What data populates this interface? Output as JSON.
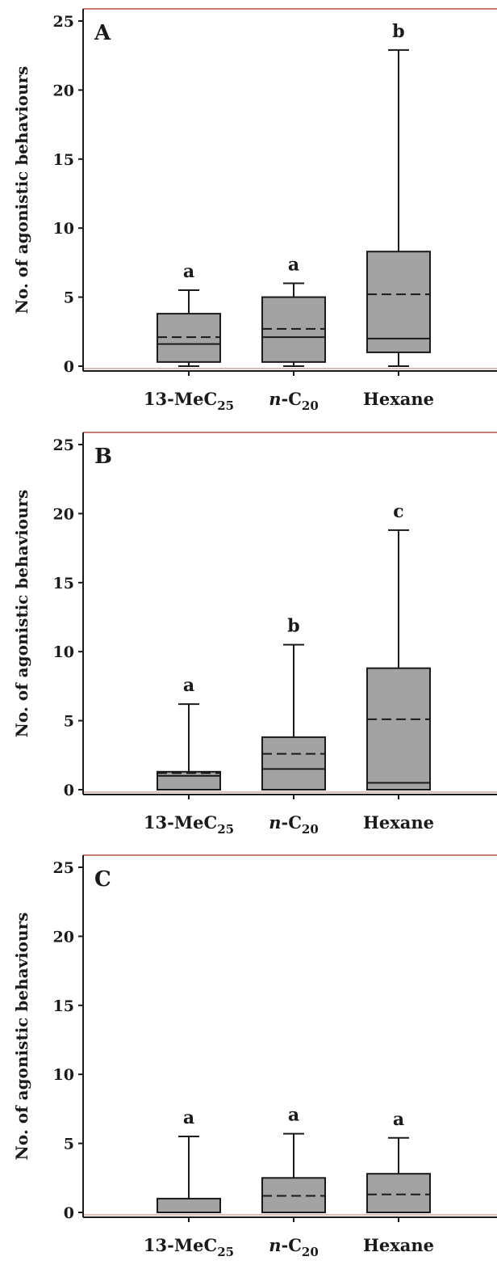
{
  "chart_data": [
    {
      "type": "box",
      "panel_label": "A",
      "ylabel": "No. of agonistic behaviours",
      "ylim": [
        0,
        25
      ],
      "yticks": [
        "0",
        "5",
        "10",
        "15",
        "20",
        "25"
      ],
      "categories": [
        {
          "prefix": "13-MeC",
          "sub": "25"
        },
        {
          "prefix": "n",
          "mid": "-C",
          "sub": "20"
        },
        {
          "prefix": "Hexane"
        }
      ],
      "boxes": [
        {
          "whisker_low": 0,
          "q1": 0.3,
          "median": 1.6,
          "mean": 2.1,
          "q3": 3.8,
          "whisker_high": 5.5,
          "letter": "a"
        },
        {
          "whisker_low": 0,
          "q1": 0.3,
          "median": 2.1,
          "mean": 2.7,
          "q3": 5.0,
          "whisker_high": 6.0,
          "letter": "a"
        },
        {
          "whisker_low": 0,
          "q1": 1.0,
          "median": 2.0,
          "mean": 5.2,
          "q3": 8.3,
          "whisker_high": 22.9,
          "letter": "b"
        }
      ]
    },
    {
      "type": "box",
      "panel_label": "B",
      "ylabel": "No. of agonistic behaviours",
      "ylim": [
        0,
        25
      ],
      "yticks": [
        "0",
        "5",
        "10",
        "15",
        "20",
        "25"
      ],
      "categories": [
        {
          "prefix": "13-MeC",
          "sub": "25"
        },
        {
          "prefix": "n",
          "mid": "-C",
          "sub": "20"
        },
        {
          "prefix": "Hexane"
        }
      ],
      "boxes": [
        {
          "whisker_low": 0,
          "q1": 0,
          "median": 1.0,
          "mean": 1.2,
          "q3": 1.3,
          "whisker_high": 6.2,
          "letter": "a"
        },
        {
          "whisker_low": 0,
          "q1": 0,
          "median": 1.5,
          "mean": 2.6,
          "q3": 3.8,
          "whisker_high": 10.5,
          "letter": "b"
        },
        {
          "whisker_low": 0,
          "q1": 0,
          "median": 0.5,
          "mean": 5.1,
          "q3": 8.8,
          "whisker_high": 18.8,
          "letter": "c"
        }
      ]
    },
    {
      "type": "box",
      "panel_label": "C",
      "ylabel": "No. of agonistic behaviours",
      "ylim": [
        0,
        25
      ],
      "yticks": [
        "0",
        "5",
        "10",
        "15",
        "20",
        "25"
      ],
      "categories": [
        {
          "prefix": "13-MeC",
          "sub": "25"
        },
        {
          "prefix": "n",
          "mid": "-C",
          "sub": "20"
        },
        {
          "prefix": "Hexane"
        }
      ],
      "boxes": [
        {
          "whisker_low": 0,
          "q1": 0,
          "median": 0,
          "mean": 0,
          "q3": 1.0,
          "whisker_high": 5.5,
          "letter": "a"
        },
        {
          "whisker_low": 0,
          "q1": 0,
          "median": 0,
          "mean": 1.2,
          "q3": 2.5,
          "whisker_high": 5.7,
          "letter": "a"
        },
        {
          "whisker_low": 0,
          "q1": 0,
          "median": 0,
          "mean": 1.3,
          "q3": 2.8,
          "whisker_high": 5.4,
          "letter": "a"
        }
      ]
    }
  ]
}
